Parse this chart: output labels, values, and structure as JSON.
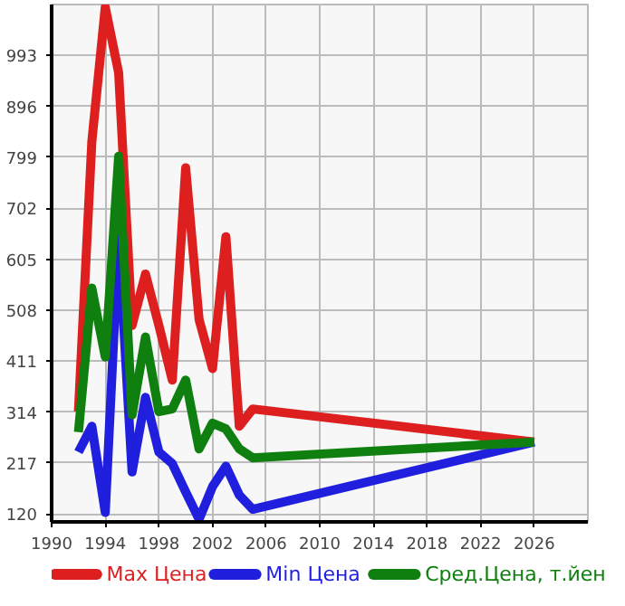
{
  "chart_data": {
    "type": "line",
    "x": [
      1992,
      1993,
      1994,
      1995,
      1996,
      1997,
      1998,
      1999,
      2000,
      2001,
      2002,
      2003,
      2004,
      2005,
      2026
    ],
    "series": [
      {
        "name": "Max Цена",
        "color": "#dd1f1f",
        "values": [
          315,
          829,
          1085,
          960,
          479,
          577,
          479,
          375,
          779,
          490,
          397,
          648,
          287,
          320,
          257
        ]
      },
      {
        "name": "Min Цена",
        "color": "#1f1fdd",
        "values": [
          238,
          287,
          123,
          648,
          200,
          342,
          238,
          216,
          162,
          110,
          172,
          211,
          156,
          129,
          257
        ]
      },
      {
        "name": "Сред.Цена, т.йен",
        "color": "#0f800f",
        "values": [
          276,
          550,
          419,
          801,
          309,
          457,
          315,
          320,
          375,
          244,
          293,
          282,
          244,
          227,
          257
        ]
      }
    ],
    "xlim": [
      1990,
      2030
    ],
    "xticks": [
      1990,
      1994,
      1998,
      2002,
      2006,
      2010,
      2014,
      2018,
      2022,
      2026
    ],
    "ylim": [
      105,
      1090
    ],
    "yticks": [
      120,
      217,
      314,
      411,
      508,
      605,
      702,
      799,
      896,
      993
    ],
    "grid": true,
    "legend": "bottom",
    "marker": "none",
    "line_style": "solid"
  }
}
